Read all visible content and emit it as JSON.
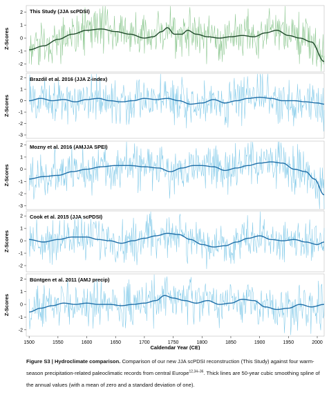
{
  "chart_data": {
    "type": "line",
    "x_axis": {
      "label": "Caldendar Year (CE)",
      "range": [
        1495,
        2012
      ],
      "ticks": [
        1500,
        1550,
        1600,
        1650,
        1700,
        1750,
        1800,
        1850,
        1900,
        1950,
        2000
      ]
    },
    "panels": [
      {
        "title": "This Study (JJA scPDSI)",
        "ylabel": "Z-Scores",
        "yticks": [
          2,
          1,
          0,
          -1,
          -2
        ],
        "ylim": [
          -2.6,
          2.5
        ],
        "annual_color": "#86c48a",
        "spline_color": "#1f4a2a",
        "spline": [
          [
            1500,
            -0.9
          ],
          [
            1525,
            -0.6
          ],
          [
            1550,
            -0.1
          ],
          [
            1575,
            0.3
          ],
          [
            1600,
            0.6
          ],
          [
            1625,
            0.7
          ],
          [
            1650,
            0.5
          ],
          [
            1675,
            0.3
          ],
          [
            1700,
            0.0
          ],
          [
            1715,
            0.1
          ],
          [
            1730,
            0.5
          ],
          [
            1740,
            0.8
          ],
          [
            1752,
            0.3
          ],
          [
            1765,
            0.3
          ],
          [
            1775,
            0.6
          ],
          [
            1790,
            0.3
          ],
          [
            1810,
            0.1
          ],
          [
            1830,
            0.0
          ],
          [
            1850,
            0.1
          ],
          [
            1870,
            0.2
          ],
          [
            1890,
            0.1
          ],
          [
            1910,
            0.4
          ],
          [
            1930,
            0.6
          ],
          [
            1950,
            0.2
          ],
          [
            1970,
            0.0
          ],
          [
            1990,
            -0.3
          ],
          [
            2012,
            -1.8
          ]
        ]
      },
      {
        "title": "Brazdil et al. 2016 (JJA Z-index)",
        "ylabel": "Z-Scores",
        "yticks": [
          2,
          1,
          0,
          -1,
          -2,
          -3
        ],
        "ylim": [
          -3.3,
          2.4
        ],
        "annual_color": "#7ec8e8",
        "spline_color": "#1f6fa8",
        "spline": [
          [
            1500,
            0.0
          ],
          [
            1520,
            0.2
          ],
          [
            1540,
            0.0
          ],
          [
            1560,
            0.1
          ],
          [
            1580,
            -0.1
          ],
          [
            1600,
            0.1
          ],
          [
            1620,
            0.2
          ],
          [
            1640,
            0.0
          ],
          [
            1660,
            -0.1
          ],
          [
            1680,
            0.0
          ],
          [
            1700,
            0.2
          ],
          [
            1720,
            0.1
          ],
          [
            1740,
            0.2
          ],
          [
            1760,
            0.0
          ],
          [
            1780,
            -0.3
          ],
          [
            1800,
            -0.2
          ],
          [
            1820,
            0.1
          ],
          [
            1840,
            -0.2
          ],
          [
            1860,
            0.0
          ],
          [
            1880,
            0.2
          ],
          [
            1900,
            0.3
          ],
          [
            1920,
            0.2
          ],
          [
            1940,
            0.0
          ],
          [
            1960,
            0.0
          ],
          [
            1980,
            -0.1
          ],
          [
            2000,
            -0.2
          ],
          [
            2012,
            -0.3
          ]
        ]
      },
      {
        "title": "Mozny et al. 2016 (AMJJA SPEI)",
        "ylabel": "Z-Scores",
        "yticks": [
          2,
          1,
          0,
          -1,
          -2,
          -3
        ],
        "ylim": [
          -3.3,
          2.3
        ],
        "annual_color": "#7ec8e8",
        "spline_color": "#1f6fa8",
        "spline": [
          [
            1500,
            -0.8
          ],
          [
            1525,
            -0.6
          ],
          [
            1550,
            -0.5
          ],
          [
            1575,
            -0.2
          ],
          [
            1600,
            0.0
          ],
          [
            1625,
            0.2
          ],
          [
            1650,
            0.3
          ],
          [
            1675,
            0.3
          ],
          [
            1700,
            0.2
          ],
          [
            1725,
            0.1
          ],
          [
            1745,
            -0.2
          ],
          [
            1765,
            0.1
          ],
          [
            1785,
            0.3
          ],
          [
            1800,
            0.3
          ],
          [
            1820,
            0.2
          ],
          [
            1840,
            -0.1
          ],
          [
            1860,
            0.1
          ],
          [
            1880,
            0.3
          ],
          [
            1900,
            0.5
          ],
          [
            1920,
            0.6
          ],
          [
            1940,
            0.5
          ],
          [
            1960,
            0.0
          ],
          [
            1980,
            -0.2
          ],
          [
            1995,
            -0.8
          ],
          [
            2012,
            -2.1
          ]
        ]
      },
      {
        "title": "Cook et al. 2015 (JJA scPDSI)",
        "ylabel": "Z-Scores",
        "yticks": [
          2,
          1,
          0,
          -1,
          -2
        ],
        "ylim": [
          -2.5,
          2.4
        ],
        "annual_color": "#7ec8e8",
        "spline_color": "#1f6fa8",
        "spline": [
          [
            1500,
            0.1
          ],
          [
            1525,
            -0.1
          ],
          [
            1550,
            0.1
          ],
          [
            1575,
            0.3
          ],
          [
            1600,
            0.3
          ],
          [
            1620,
            0.1
          ],
          [
            1640,
            0.0
          ],
          [
            1660,
            -0.2
          ],
          [
            1680,
            0.0
          ],
          [
            1700,
            0.2
          ],
          [
            1720,
            0.4
          ],
          [
            1740,
            0.6
          ],
          [
            1760,
            0.5
          ],
          [
            1780,
            0.1
          ],
          [
            1800,
            -0.3
          ],
          [
            1820,
            -0.5
          ],
          [
            1840,
            -0.4
          ],
          [
            1860,
            -0.1
          ],
          [
            1880,
            0.2
          ],
          [
            1900,
            0.4
          ],
          [
            1920,
            0.1
          ],
          [
            1940,
            0.0
          ],
          [
            1960,
            0.1
          ],
          [
            1980,
            -0.1
          ],
          [
            2000,
            -0.3
          ],
          [
            2012,
            -0.1
          ]
        ]
      },
      {
        "title": "Büntgen et al. 2011 (AMJ precip)",
        "ylabel": "Z-Scores",
        "yticks": [
          2,
          1,
          0,
          -1,
          -2
        ],
        "ylim": [
          -2.5,
          2.4
        ],
        "annual_color": "#7ec8e8",
        "spline_color": "#1f6fa8",
        "spline": [
          [
            1500,
            -0.6
          ],
          [
            1520,
            -0.3
          ],
          [
            1540,
            -0.1
          ],
          [
            1560,
            0.1
          ],
          [
            1580,
            0.0
          ],
          [
            1600,
            0.1
          ],
          [
            1620,
            0.0
          ],
          [
            1640,
            0.0
          ],
          [
            1660,
            -0.1
          ],
          [
            1680,
            0.0
          ],
          [
            1700,
            0.1
          ],
          [
            1720,
            0.3
          ],
          [
            1735,
            0.7
          ],
          [
            1750,
            0.5
          ],
          [
            1770,
            0.3
          ],
          [
            1790,
            0.1
          ],
          [
            1810,
            0.3
          ],
          [
            1830,
            0.0
          ],
          [
            1850,
            0.1
          ],
          [
            1870,
            0.4
          ],
          [
            1890,
            0.3
          ],
          [
            1910,
            -0.2
          ],
          [
            1930,
            -0.4
          ],
          [
            1950,
            -0.3
          ],
          [
            1970,
            0.0
          ],
          [
            1990,
            -0.2
          ],
          [
            2012,
            0.0
          ]
        ]
      }
    ]
  },
  "caption": {
    "lead": "Figure S3 | Hydroclimate comparison.",
    "body_before_refs": " Comparison of our new JJA scPDSI reconstruction (This Study) against four warm-season precipitation-related paleoclimatic records from central Europe",
    "refs": "12,34–36",
    "body_after_refs": ". Thick lines are 50-year cubic smoothing spline of the annual values (with a mean of zero and a standard deviation of one)."
  }
}
